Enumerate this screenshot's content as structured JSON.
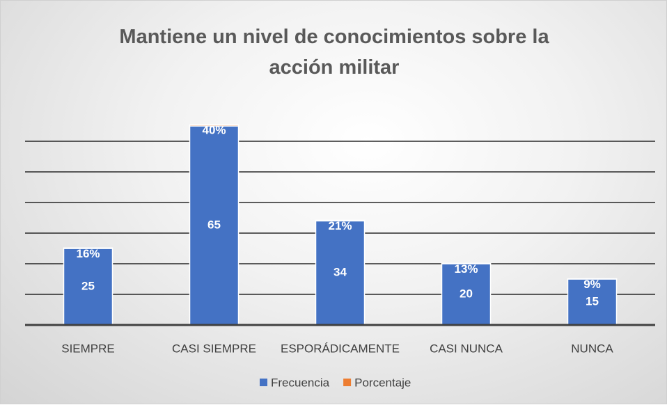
{
  "chart_data": {
    "type": "stacked-bar",
    "title": "Mantiene un nivel de conocimientos sobre la acción militar",
    "categories": [
      "SIEMPRE",
      "CASI SIEMPRE",
      "ESPORÁDICAMENTE",
      "CASI NUNCA",
      "NUNCA"
    ],
    "series": [
      {
        "name": "Frecuencia",
        "color": "#4472c4",
        "values": [
          25,
          65,
          34,
          20,
          15
        ]
      },
      {
        "name": "Porcentaje",
        "color": "#ed7d31",
        "values": [
          0.16,
          0.4,
          0.21,
          0.13,
          0.09
        ],
        "value_labels": [
          "16%",
          "40%",
          "21%",
          "13%",
          "9%"
        ]
      }
    ],
    "ylim": [
      0,
      70
    ],
    "yticks": [
      0,
      10,
      20,
      30,
      40,
      50,
      60
    ],
    "grid": true,
    "legend": "bottom"
  }
}
